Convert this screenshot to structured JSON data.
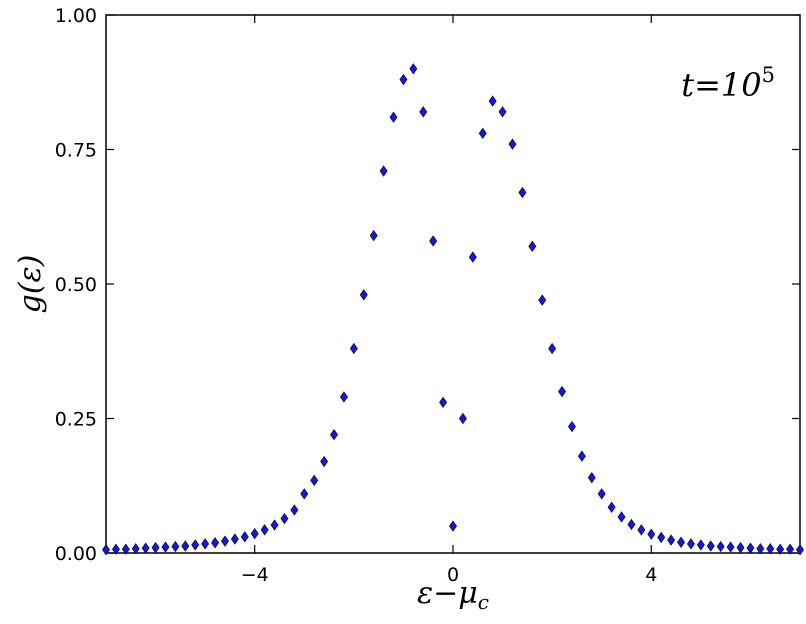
{
  "chart_data": {
    "type": "scatter",
    "xlabel": {
      "main": "ε−μ",
      "sub": "c"
    },
    "ylabel": "g(ε)",
    "annotation": {
      "main": "t=10",
      "sup": "5"
    },
    "marker": "diamond",
    "series": [
      {
        "color": "#1414f0",
        "x": [
          -7,
          -6.8,
          -6.6,
          -6.4,
          -6.2,
          -6,
          -5.8,
          -5.6,
          -5.4,
          -5.2,
          -5,
          -4.8,
          -4.6,
          -4.4,
          -4.2,
          -4,
          -3.8,
          -3.6,
          -3.4,
          -3.2,
          -3,
          -2.8,
          -2.6,
          -2.4,
          -2.2,
          -2,
          -1.8,
          -1.6,
          -1.4,
          -1.2,
          -1,
          -0.8,
          -0.6,
          -0.4,
          -0.2,
          0,
          0.2,
          0.4,
          0.6,
          0.8,
          1,
          1.2,
          1.4,
          1.6,
          1.8,
          2,
          2.2,
          2.4,
          2.6,
          2.8,
          3,
          3.2,
          3.4,
          3.6,
          3.8,
          4,
          4.2,
          4.4,
          4.6,
          4.8,
          5,
          5.2,
          5.4,
          5.6,
          5.8,
          6,
          6.2,
          6.4,
          6.6,
          6.8,
          7
        ],
        "values": [
          0.006,
          0.007,
          0.007,
          0.008,
          0.009,
          0.01,
          0.011,
          0.012,
          0.013,
          0.015,
          0.017,
          0.019,
          0.022,
          0.026,
          0.03,
          0.036,
          0.043,
          0.052,
          0.064,
          0.08,
          0.11,
          0.135,
          0.17,
          0.22,
          0.29,
          0.38,
          0.48,
          0.59,
          0.71,
          0.81,
          0.88,
          0.9,
          0.82,
          0.58,
          0.28,
          0.05,
          0.25,
          0.55,
          0.78,
          0.84,
          0.82,
          0.76,
          0.67,
          0.57,
          0.47,
          0.38,
          0.3,
          0.235,
          0.18,
          0.14,
          0.11,
          0.085,
          0.067,
          0.053,
          0.043,
          0.035,
          0.029,
          0.024,
          0.02,
          0.017,
          0.015,
          0.013,
          0.012,
          0.011,
          0.01,
          0.009,
          0.008,
          0.008,
          0.007,
          0.007,
          0.006
        ]
      }
    ],
    "xlim": [
      -7,
      7
    ],
    "xticks": [
      {
        "value": -4,
        "label": "−4"
      },
      0,
      4
    ],
    "ylim": [
      0,
      1
    ],
    "yticks": [
      {
        "value": 0,
        "label": "0.00"
      },
      {
        "value": 0.25,
        "label": "0.25"
      },
      {
        "value": 0.5,
        "label": "0.50"
      },
      {
        "value": 0.75,
        "label": "0.75"
      },
      {
        "value": 1,
        "label": "1.00"
      }
    ]
  }
}
